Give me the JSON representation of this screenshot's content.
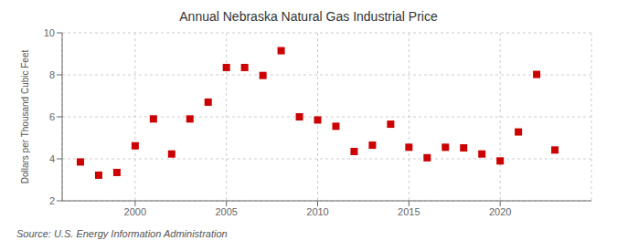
{
  "chart_data": {
    "type": "scatter",
    "title": "Annual Nebraska Natural Gas Industrial Price",
    "y_label": "Dollars per Thousand Cubic Feet",
    "annotation": "Source: U.S. Energy Information Administration",
    "x": [
      1997,
      1998,
      1999,
      2000,
      2001,
      2002,
      2003,
      2004,
      2005,
      2006,
      2007,
      2008,
      2009,
      2010,
      2011,
      2012,
      2013,
      2014,
      2015,
      2016,
      2017,
      2018,
      2019,
      2020,
      2021,
      2022,
      2023
    ],
    "values": [
      3.85,
      3.22,
      3.35,
      4.62,
      5.9,
      4.23,
      5.9,
      6.7,
      8.35,
      8.35,
      7.97,
      9.15,
      6.0,
      5.85,
      5.55,
      4.35,
      4.65,
      5.65,
      4.55,
      4.05,
      4.55,
      4.52,
      4.23,
      3.9,
      5.28,
      8.02,
      4.42
    ],
    "color": "#cc0000",
    "marker": "square",
    "xlim": [
      1996,
      2025
    ],
    "xticks": [
      2000,
      2005,
      2010,
      2015,
      2020
    ],
    "ylim": [
      2,
      10
    ],
    "yticks": [
      2,
      4,
      6,
      8,
      10
    ],
    "grid": true
  }
}
